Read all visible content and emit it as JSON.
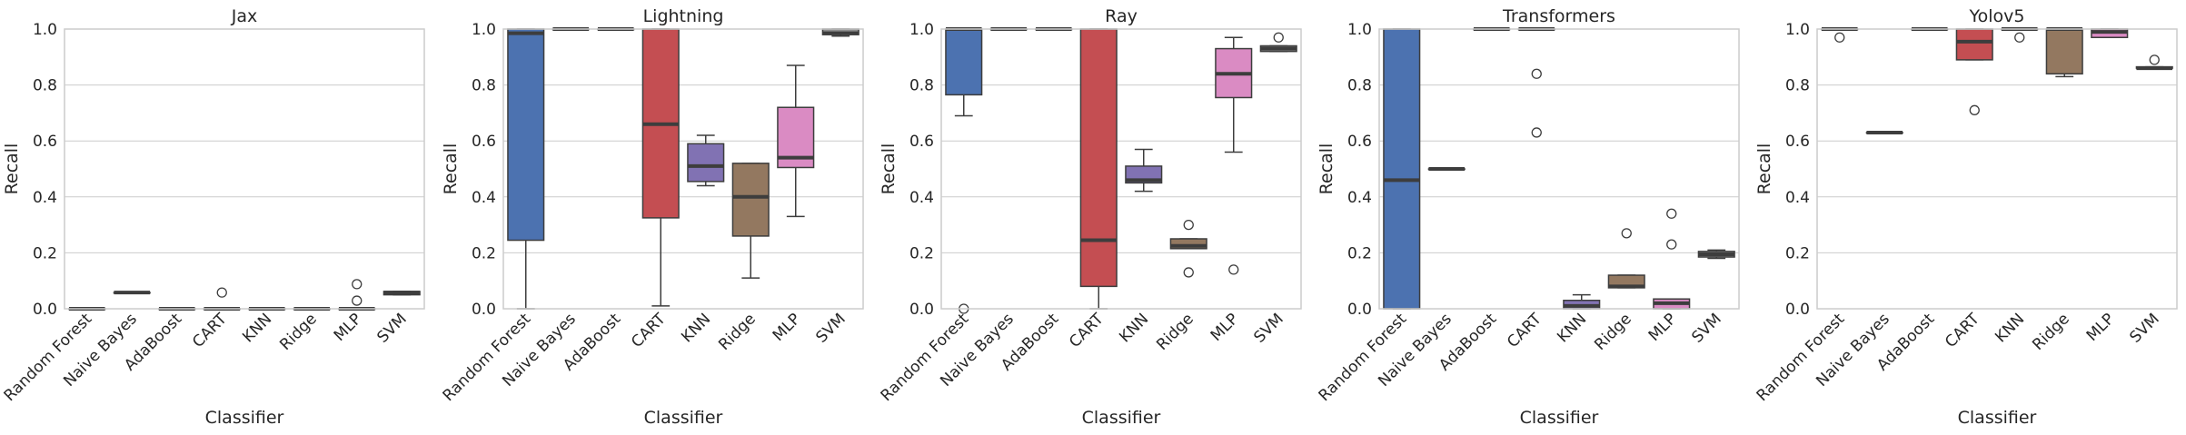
{
  "chart_data": {
    "type": "box",
    "y_label": "Recall",
    "x_label": "Classifier",
    "ylim": [
      0,
      1
    ],
    "y_ticks": [
      0.0,
      0.2,
      0.4,
      0.6,
      0.8,
      1.0
    ],
    "y_tick_labels": [
      "0.0",
      "0.2",
      "0.4",
      "0.6",
      "0.8",
      "1.0"
    ],
    "grid": "horizontal",
    "categories": [
      "Random Forest",
      "Naive Bayes",
      "AdaBoost",
      "CART",
      "KNN",
      "Ridge",
      "MLP",
      "SVM"
    ],
    "category_colors": [
      "#4c72b0",
      "#4c72b0",
      "#4c72b0",
      "#c44e52",
      "#8172b3",
      "#937860",
      "#da8bc3",
      "#8c8c8c"
    ],
    "panels": [
      {
        "title": "Jax",
        "boxes": [
          {
            "category": "Random Forest",
            "whisker_low": 0.0,
            "q1": 0.0,
            "median": 0.0,
            "q3": 0.0,
            "whisker_high": 0.0,
            "outliers": []
          },
          {
            "category": "Naive Bayes",
            "whisker_low": 0.058,
            "q1": 0.058,
            "median": 0.058,
            "q3": 0.058,
            "whisker_high": 0.058,
            "outliers": []
          },
          {
            "category": "AdaBoost",
            "whisker_low": 0.0,
            "q1": 0.0,
            "median": 0.0,
            "q3": 0.0,
            "whisker_high": 0.0,
            "outliers": []
          },
          {
            "category": "CART",
            "whisker_low": 0.0,
            "q1": 0.0,
            "median": 0.0,
            "q3": 0.0,
            "whisker_high": 0.0,
            "outliers": [
              0.058
            ]
          },
          {
            "category": "KNN",
            "whisker_low": 0.0,
            "q1": 0.0,
            "median": 0.0,
            "q3": 0.0,
            "whisker_high": 0.0,
            "outliers": []
          },
          {
            "category": "Ridge",
            "whisker_low": 0.0,
            "q1": 0.0,
            "median": 0.0,
            "q3": 0.0,
            "whisker_high": 0.0,
            "outliers": []
          },
          {
            "category": "MLP",
            "whisker_low": 0.0,
            "q1": 0.0,
            "median": 0.0,
            "q3": 0.0,
            "whisker_high": 0.0,
            "outliers": [
              0.088,
              0.029
            ]
          },
          {
            "category": "SVM",
            "whisker_low": 0.05,
            "q1": 0.05,
            "median": 0.058,
            "q3": 0.062,
            "whisker_high": 0.062,
            "outliers": []
          }
        ]
      },
      {
        "title": "Lightning",
        "boxes": [
          {
            "category": "Random Forest",
            "whisker_low": 0.0,
            "q1": 0.245,
            "median": 0.985,
            "q3": 1.0,
            "whisker_high": 1.0,
            "outliers": []
          },
          {
            "category": "Naive Bayes",
            "whisker_low": 1.0,
            "q1": 1.0,
            "median": 1.0,
            "q3": 1.0,
            "whisker_high": 1.0,
            "outliers": []
          },
          {
            "category": "AdaBoost",
            "whisker_low": 1.0,
            "q1": 1.0,
            "median": 1.0,
            "q3": 1.0,
            "whisker_high": 1.0,
            "outliers": []
          },
          {
            "category": "CART",
            "whisker_low": 0.01,
            "q1": 0.325,
            "median": 0.66,
            "q3": 1.0,
            "whisker_high": 1.0,
            "outliers": []
          },
          {
            "category": "KNN",
            "whisker_low": 0.44,
            "q1": 0.455,
            "median": 0.51,
            "q3": 0.59,
            "whisker_high": 0.62,
            "outliers": []
          },
          {
            "category": "Ridge",
            "whisker_low": 0.11,
            "q1": 0.26,
            "median": 0.4,
            "q3": 0.52,
            "whisker_high": 0.52,
            "outliers": []
          },
          {
            "category": "MLP",
            "whisker_low": 0.33,
            "q1": 0.505,
            "median": 0.54,
            "q3": 0.72,
            "whisker_high": 0.87,
            "outliers": []
          },
          {
            "category": "SVM",
            "whisker_low": 0.975,
            "q1": 0.98,
            "median": 0.985,
            "q3": 1.0,
            "whisker_high": 1.0,
            "outliers": []
          }
        ]
      },
      {
        "title": "Ray",
        "boxes": [
          {
            "category": "Random Forest",
            "whisker_low": 0.69,
            "q1": 0.765,
            "median": 1.0,
            "q3": 1.0,
            "whisker_high": 1.0,
            "outliers": [
              0.0
            ]
          },
          {
            "category": "Naive Bayes",
            "whisker_low": 1.0,
            "q1": 1.0,
            "median": 1.0,
            "q3": 1.0,
            "whisker_high": 1.0,
            "outliers": []
          },
          {
            "category": "AdaBoost",
            "whisker_low": 1.0,
            "q1": 1.0,
            "median": 1.0,
            "q3": 1.0,
            "whisker_high": 1.0,
            "outliers": []
          },
          {
            "category": "CART",
            "whisker_low": 0.0,
            "q1": 0.08,
            "median": 0.245,
            "q3": 1.0,
            "whisker_high": 1.0,
            "outliers": []
          },
          {
            "category": "KNN",
            "whisker_low": 0.42,
            "q1": 0.45,
            "median": 0.46,
            "q3": 0.51,
            "whisker_high": 0.57,
            "outliers": []
          },
          {
            "category": "Ridge",
            "whisker_low": 0.215,
            "q1": 0.215,
            "median": 0.225,
            "q3": 0.25,
            "whisker_high": 0.25,
            "outliers": [
              0.3,
              0.13
            ]
          },
          {
            "category": "MLP",
            "whisker_low": 0.56,
            "q1": 0.755,
            "median": 0.84,
            "q3": 0.93,
            "whisker_high": 0.97,
            "outliers": [
              0.14
            ]
          },
          {
            "category": "SVM",
            "whisker_low": 0.92,
            "q1": 0.92,
            "median": 0.93,
            "q3": 0.94,
            "whisker_high": 0.94,
            "outliers": [
              0.97
            ]
          }
        ]
      },
      {
        "title": "Transformers",
        "boxes": [
          {
            "category": "Random Forest",
            "whisker_low": 0.0,
            "q1": 0.0,
            "median": 0.46,
            "q3": 1.0,
            "whisker_high": 1.0,
            "outliers": []
          },
          {
            "category": "Naive Bayes",
            "whisker_low": 0.5,
            "q1": 0.5,
            "median": 0.5,
            "q3": 0.5,
            "whisker_high": 0.5,
            "outliers": []
          },
          {
            "category": "AdaBoost",
            "whisker_low": 1.0,
            "q1": 1.0,
            "median": 1.0,
            "q3": 1.0,
            "whisker_high": 1.0,
            "outliers": []
          },
          {
            "category": "CART",
            "whisker_low": 1.0,
            "q1": 1.0,
            "median": 1.0,
            "q3": 1.0,
            "whisker_high": 1.0,
            "outliers": [
              0.84,
              0.63
            ]
          },
          {
            "category": "KNN",
            "whisker_low": 0.0,
            "q1": 0.0,
            "median": 0.01,
            "q3": 0.03,
            "whisker_high": 0.05,
            "outliers": []
          },
          {
            "category": "Ridge",
            "whisker_low": 0.075,
            "q1": 0.075,
            "median": 0.08,
            "q3": 0.12,
            "whisker_high": 0.12,
            "outliers": [
              0.27
            ]
          },
          {
            "category": "MLP",
            "whisker_low": 0.0,
            "q1": 0.0,
            "median": 0.02,
            "q3": 0.035,
            "whisker_high": 0.035,
            "outliers": [
              0.34,
              0.23
            ]
          },
          {
            "category": "SVM",
            "whisker_low": 0.18,
            "q1": 0.185,
            "median": 0.195,
            "q3": 0.205,
            "whisker_high": 0.21,
            "outliers": []
          }
        ]
      },
      {
        "title": "Yolov5",
        "boxes": [
          {
            "category": "Random Forest",
            "whisker_low": 1.0,
            "q1": 1.0,
            "median": 1.0,
            "q3": 1.0,
            "whisker_high": 1.0,
            "outliers": [
              0.97
            ]
          },
          {
            "category": "Naive Bayes",
            "whisker_low": 0.63,
            "q1": 0.63,
            "median": 0.63,
            "q3": 0.63,
            "whisker_high": 0.63,
            "outliers": []
          },
          {
            "category": "AdaBoost",
            "whisker_low": 1.0,
            "q1": 1.0,
            "median": 1.0,
            "q3": 1.0,
            "whisker_high": 1.0,
            "outliers": []
          },
          {
            "category": "CART",
            "whisker_low": 0.89,
            "q1": 0.89,
            "median": 0.955,
            "q3": 1.0,
            "whisker_high": 1.0,
            "outliers": [
              0.71
            ]
          },
          {
            "category": "KNN",
            "whisker_low": 1.0,
            "q1": 1.0,
            "median": 1.0,
            "q3": 1.0,
            "whisker_high": 1.0,
            "outliers": [
              0.97
            ]
          },
          {
            "category": "Ridge",
            "whisker_low": 0.83,
            "q1": 0.84,
            "median": 1.0,
            "q3": 1.0,
            "whisker_high": 1.0,
            "outliers": []
          },
          {
            "category": "MLP",
            "whisker_low": 0.97,
            "q1": 0.97,
            "median": 0.99,
            "q3": 1.0,
            "whisker_high": 1.0,
            "outliers": []
          },
          {
            "category": "SVM",
            "whisker_low": 0.86,
            "q1": 0.86,
            "median": 0.86,
            "q3": 0.865,
            "whisker_high": 0.865,
            "outliers": [
              0.89
            ]
          }
        ]
      }
    ]
  }
}
